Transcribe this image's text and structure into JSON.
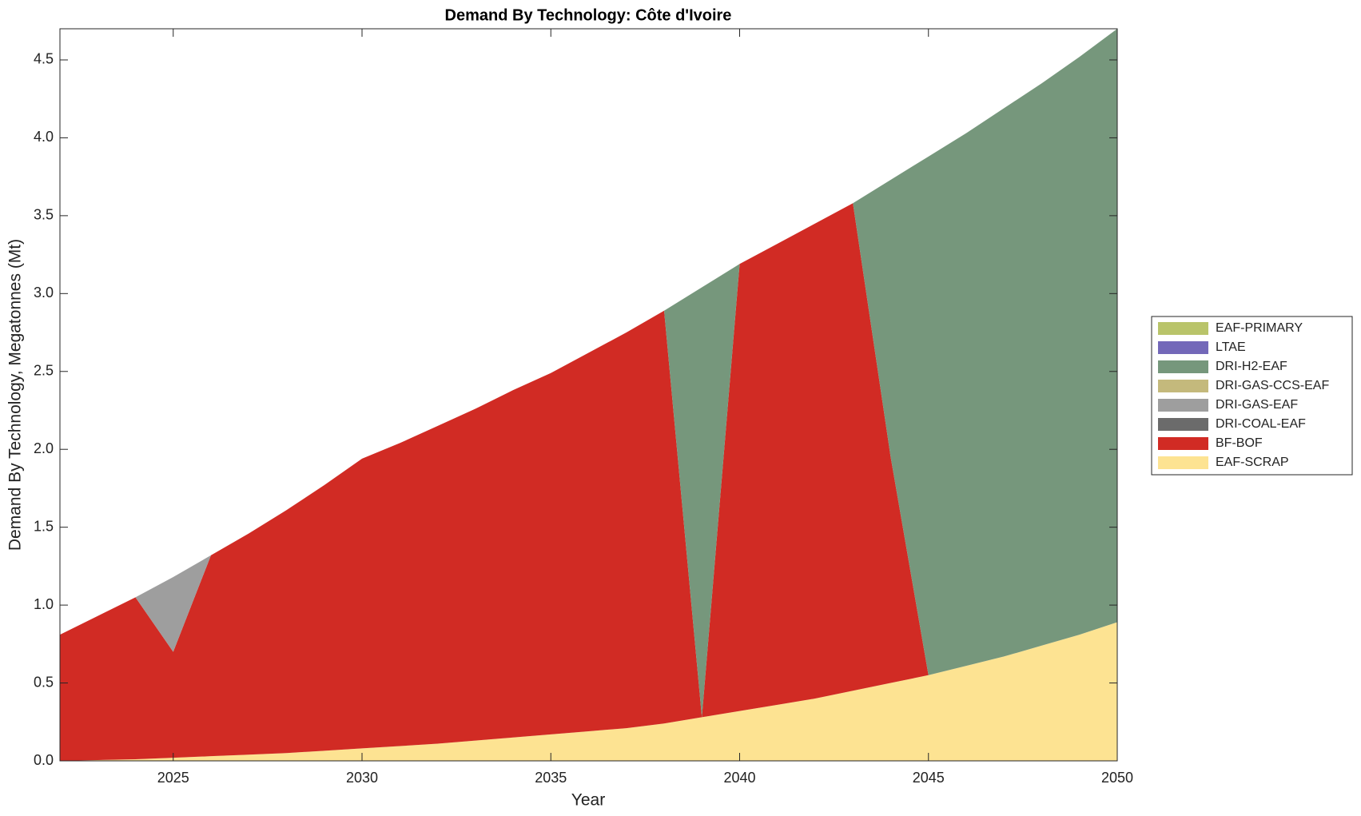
{
  "chart_data": {
    "type": "stacked-area",
    "title": "Demand By Technology: Côte d'Ivoire",
    "xlabel": "Year",
    "ylabel": "Demand By Technology, Megatonnes (Mt)",
    "x": [
      2022,
      2023,
      2024,
      2025,
      2026,
      2027,
      2028,
      2029,
      2030,
      2031,
      2032,
      2033,
      2034,
      2035,
      2036,
      2037,
      2038,
      2039,
      2040,
      2041,
      2042,
      2043,
      2044,
      2045,
      2046,
      2047,
      2048,
      2049,
      2050
    ],
    "xlim": [
      2022,
      2050
    ],
    "xticks": [
      2025,
      2030,
      2035,
      2040,
      2045,
      2050
    ],
    "ylim": [
      0,
      4.7
    ],
    "yticks": [
      {
        "value": 0,
        "label": "0.0"
      },
      {
        "value": 0.5,
        "label": "0.5"
      },
      {
        "value": 1,
        "label": "1.0"
      },
      {
        "value": 1.5,
        "label": "1.5"
      },
      {
        "value": 2,
        "label": "2.0"
      },
      {
        "value": 2.5,
        "label": "2.5"
      },
      {
        "value": 3,
        "label": "3.0"
      },
      {
        "value": 3.5,
        "label": "3.5"
      },
      {
        "value": 4,
        "label": "4.0"
      },
      {
        "value": 4.5,
        "label": "4.5"
      }
    ],
    "grid": false,
    "legend": "right",
    "series": [
      {
        "name": "EAF-PRIMARY",
        "color": "#b9c46a",
        "values": [
          0,
          0,
          0,
          0,
          0,
          0,
          0,
          0,
          0,
          0,
          0,
          0,
          0,
          0,
          0,
          0,
          0,
          0,
          0,
          0,
          0,
          0,
          0,
          0,
          0,
          0,
          0,
          0,
          0
        ]
      },
      {
        "name": "LTAE",
        "color": "#7368b9",
        "values": [
          0,
          0,
          0,
          0,
          0,
          0,
          0,
          0,
          0,
          0,
          0,
          0,
          0,
          0,
          0,
          0,
          0,
          0,
          0,
          0,
          0,
          0,
          0,
          0,
          0,
          0,
          0,
          0,
          0
        ]
      },
      {
        "name": "DRI-H2-EAF",
        "color": "#76977c",
        "values": [
          0,
          0,
          0,
          0,
          0,
          0,
          0,
          0,
          0,
          0,
          0,
          0,
          0,
          0,
          0,
          0,
          0,
          2.76,
          0,
          0,
          0,
          0,
          1.78,
          3.33,
          3.42,
          3.52,
          3.61,
          3.71,
          3.81
        ]
      },
      {
        "name": "DRI-GAS-CCS-EAF",
        "color": "#c4b97c",
        "values": [
          0,
          0,
          0,
          0,
          0,
          0,
          0,
          0,
          0,
          0,
          0,
          0,
          0,
          0,
          0,
          0,
          0,
          0,
          0,
          0,
          0,
          0,
          0,
          0,
          0,
          0,
          0,
          0,
          0
        ]
      },
      {
        "name": "DRI-GAS-EAF",
        "color": "#9e9e9e",
        "values": [
          0,
          0,
          0,
          0.48,
          0,
          0,
          0,
          0,
          0,
          0,
          0,
          0,
          0,
          0,
          0,
          0,
          0,
          0,
          0,
          0,
          0,
          0,
          0,
          0,
          0,
          0,
          0,
          0,
          0
        ]
      },
      {
        "name": "DRI-COAL-EAF",
        "color": "#6b6b6b",
        "values": [
          0,
          0,
          0,
          0,
          0,
          0,
          0,
          0,
          0,
          0,
          0,
          0,
          0,
          0,
          0,
          0,
          0,
          0,
          0,
          0,
          0,
          0,
          0,
          0,
          0,
          0,
          0,
          0,
          0
        ]
      },
      {
        "name": "BF-BOF",
        "color": "#d12b24",
        "values": [
          0.81,
          0.925,
          1.04,
          0.68,
          1.29,
          1.42,
          1.56,
          1.705,
          1.86,
          1.945,
          2.04,
          2.13,
          2.23,
          2.32,
          2.43,
          2.54,
          2.65,
          0,
          2.87,
          2.96,
          3.05,
          3.13,
          1.45,
          0,
          0,
          0,
          0,
          0,
          0
        ]
      },
      {
        "name": "EAF-SCRAP",
        "color": "#fde392",
        "values": [
          0,
          0.005,
          0.01,
          0.02,
          0.03,
          0.04,
          0.05,
          0.065,
          0.08,
          0.095,
          0.11,
          0.13,
          0.15,
          0.17,
          0.19,
          0.21,
          0.24,
          0.28,
          0.32,
          0.36,
          0.4,
          0.45,
          0.5,
          0.55,
          0.61,
          0.67,
          0.74,
          0.81,
          0.89
        ]
      }
    ]
  }
}
